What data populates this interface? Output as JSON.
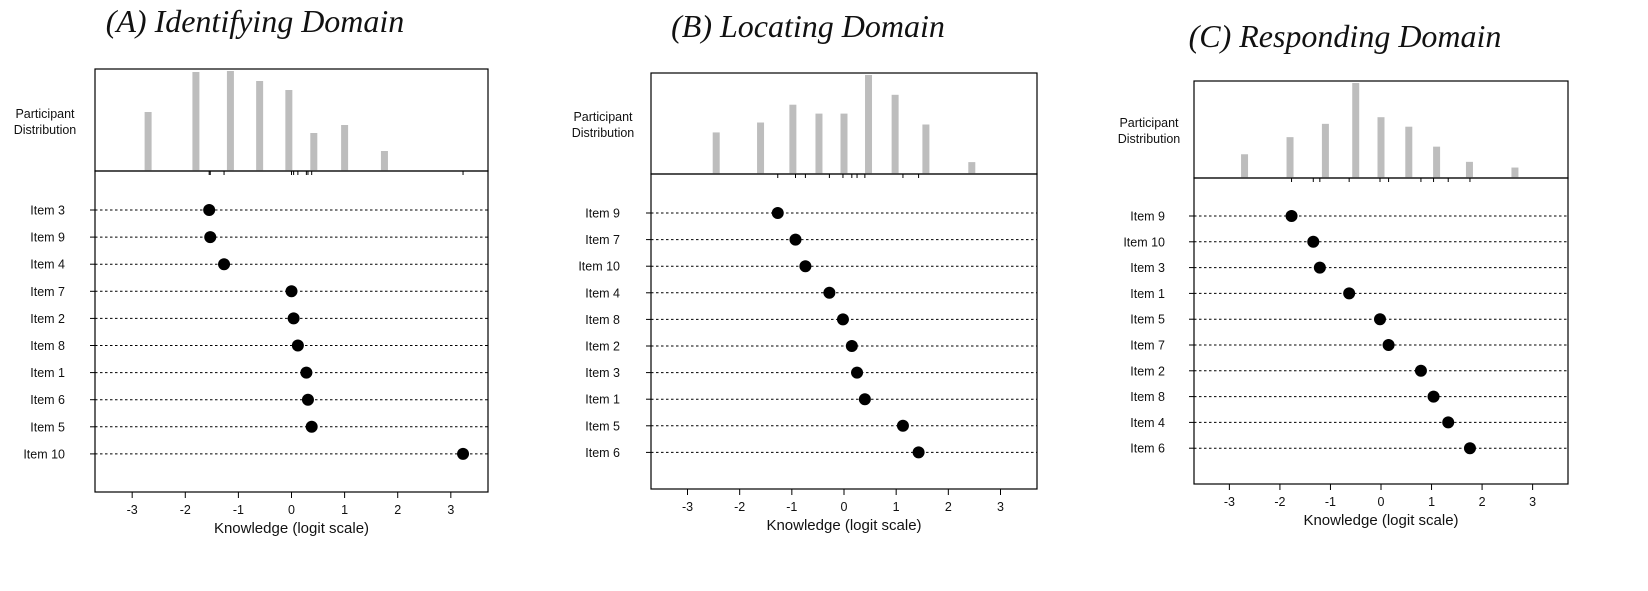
{
  "chart_data": [
    {
      "type": "scatter",
      "title": "(A) Identifying Domain",
      "xlabel": "Knowledge (logit scale)",
      "distribution_label": [
        "Participant",
        "Distribution"
      ],
      "xlim": [
        -3.7,
        3.7
      ],
      "xticks": [
        -3,
        -2,
        -1,
        0,
        1,
        2,
        3
      ],
      "items": [
        {
          "label": "Item 3",
          "value": -1.55
        },
        {
          "label": "Item 9",
          "value": -1.53
        },
        {
          "label": "Item 4",
          "value": -1.27
        },
        {
          "label": "Item 7",
          "value": 0.0
        },
        {
          "label": "Item 2",
          "value": 0.04
        },
        {
          "label": "Item 8",
          "value": 0.12
        },
        {
          "label": "Item 1",
          "value": 0.28
        },
        {
          "label": "Item 6",
          "value": 0.31
        },
        {
          "label": "Item 5",
          "value": 0.38
        },
        {
          "label": "Item 10",
          "value": 3.23
        }
      ],
      "distribution": [
        {
          "x": -2.7,
          "height": 0.59
        },
        {
          "x": -1.8,
          "height": 0.99
        },
        {
          "x": -1.15,
          "height": 1.0
        },
        {
          "x": -0.6,
          "height": 0.9
        },
        {
          "x": -0.05,
          "height": 0.81
        },
        {
          "x": 0.42,
          "height": 0.38
        },
        {
          "x": 1.0,
          "height": 0.46
        },
        {
          "x": 1.75,
          "height": 0.2
        }
      ]
    },
    {
      "type": "scatter",
      "title": "(B) Locating Domain",
      "xlabel": "Knowledge (logit scale)",
      "distribution_label": [
        "Participant",
        "Distribution"
      ],
      "xlim": [
        -3.7,
        3.7
      ],
      "xticks": [
        -3,
        -2,
        -1,
        0,
        1,
        2,
        3
      ],
      "items": [
        {
          "label": "Item 9",
          "value": -1.27
        },
        {
          "label": "Item 7",
          "value": -0.93
        },
        {
          "label": "Item 10",
          "value": -0.74
        },
        {
          "label": "Item 4",
          "value": -0.28
        },
        {
          "label": "Item 8",
          "value": -0.02
        },
        {
          "label": "Item 2",
          "value": 0.15
        },
        {
          "label": "Item 3",
          "value": 0.25
        },
        {
          "label": "Item 1",
          "value": 0.4
        },
        {
          "label": "Item 5",
          "value": 1.13
        },
        {
          "label": "Item 6",
          "value": 1.43
        }
      ],
      "distribution": [
        {
          "x": -2.45,
          "height": 0.42
        },
        {
          "x": -1.6,
          "height": 0.52
        },
        {
          "x": -0.98,
          "height": 0.7
        },
        {
          "x": -0.48,
          "height": 0.61
        },
        {
          "x": 0.0,
          "height": 0.61
        },
        {
          "x": 0.47,
          "height": 1.0
        },
        {
          "x": 0.98,
          "height": 0.8
        },
        {
          "x": 1.57,
          "height": 0.5
        },
        {
          "x": 2.45,
          "height": 0.12
        }
      ]
    },
    {
      "type": "scatter",
      "title": "(C) Responding Domain",
      "xlabel": "Knowledge (logit scale)",
      "distribution_label": [
        "Participant",
        "Distribution"
      ],
      "xlim": [
        -3.7,
        3.7
      ],
      "xticks": [
        -3,
        -2,
        -1,
        0,
        1,
        2,
        3
      ],
      "items": [
        {
          "label": "Item 9",
          "value": -1.77
        },
        {
          "label": "Item 10",
          "value": -1.34
        },
        {
          "label": "Item 3",
          "value": -1.21
        },
        {
          "label": "Item 1",
          "value": -0.63
        },
        {
          "label": "Item 5",
          "value": -0.02
        },
        {
          "label": "Item 7",
          "value": 0.15
        },
        {
          "label": "Item 2",
          "value": 0.79
        },
        {
          "label": "Item 8",
          "value": 1.04
        },
        {
          "label": "Item 4",
          "value": 1.33
        },
        {
          "label": "Item 6",
          "value": 1.76
        }
      ],
      "distribution": [
        {
          "x": -2.7,
          "height": 0.25
        },
        {
          "x": -1.8,
          "height": 0.43
        },
        {
          "x": -1.1,
          "height": 0.57
        },
        {
          "x": -0.5,
          "height": 1.0
        },
        {
          "x": 0.0,
          "height": 0.64
        },
        {
          "x": 0.55,
          "height": 0.54
        },
        {
          "x": 1.1,
          "height": 0.33
        },
        {
          "x": 1.75,
          "height": 0.17
        },
        {
          "x": 2.65,
          "height": 0.11
        }
      ]
    }
  ]
}
